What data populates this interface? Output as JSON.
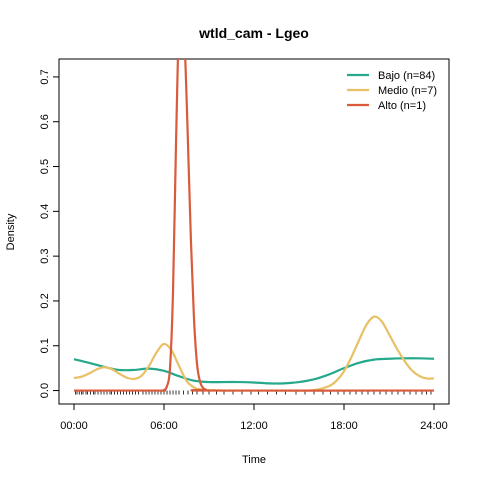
{
  "chart_data": {
    "type": "line",
    "title": "wtld_cam - Lgeo",
    "xlabel": "Time",
    "ylabel": "Density",
    "xlim": [
      -1.0,
      25.0
    ],
    "ylim": [
      -0.03,
      0.74
    ],
    "x_ticks": [
      {
        "value": 0,
        "label": "00:00"
      },
      {
        "value": 6,
        "label": "06:00"
      },
      {
        "value": 12,
        "label": "12:00"
      },
      {
        "value": 18,
        "label": "18:00"
      },
      {
        "value": 24,
        "label": "24:00"
      }
    ],
    "y_ticks": [
      {
        "value": 0.0,
        "label": "0.0"
      },
      {
        "value": 0.1,
        "label": "0.1"
      },
      {
        "value": 0.2,
        "label": "0.2"
      },
      {
        "value": 0.3,
        "label": "0.3"
      },
      {
        "value": 0.4,
        "label": "0.4"
      },
      {
        "value": 0.5,
        "label": "0.5"
      },
      {
        "value": 0.6,
        "label": "0.6"
      },
      {
        "value": 0.7,
        "label": "0.7"
      }
    ],
    "grid": false,
    "legend_position": "top-right",
    "series": [
      {
        "name": "Bajo (n=84)",
        "color": "#26a98b",
        "x": [
          0,
          1,
          2,
          3,
          4,
          5,
          6,
          7,
          8,
          9,
          10,
          11,
          12,
          13,
          14,
          15,
          16,
          17,
          18,
          19,
          20,
          21,
          22,
          23,
          24
        ],
        "y": [
          0.07,
          0.062,
          0.053,
          0.046,
          0.046,
          0.049,
          0.044,
          0.032,
          0.022,
          0.019,
          0.019,
          0.019,
          0.018,
          0.016,
          0.016,
          0.019,
          0.025,
          0.036,
          0.05,
          0.062,
          0.069,
          0.071,
          0.072,
          0.072,
          0.071
        ]
      },
      {
        "name": "Medio (n=7)",
        "color": "#e8c065",
        "x": [
          0,
          0.5,
          1,
          1.5,
          2,
          2.5,
          3,
          3.5,
          4,
          4.5,
          5,
          5.5,
          6,
          6.5,
          7,
          7.5,
          8,
          8.5,
          9,
          10,
          11,
          12,
          13,
          14,
          15,
          16,
          17,
          17.5,
          18,
          18.5,
          19,
          19.5,
          20,
          20.5,
          21,
          21.5,
          22,
          22.5,
          23,
          23.5,
          24
        ],
        "y": [
          0.028,
          0.031,
          0.038,
          0.047,
          0.052,
          0.048,
          0.038,
          0.029,
          0.026,
          0.033,
          0.055,
          0.085,
          0.104,
          0.09,
          0.055,
          0.022,
          0.007,
          0.002,
          0.001,
          0.0,
          0.0,
          0.0,
          0.0,
          0.0,
          0.0,
          0.001,
          0.01,
          0.022,
          0.043,
          0.075,
          0.112,
          0.147,
          0.165,
          0.155,
          0.126,
          0.095,
          0.068,
          0.046,
          0.033,
          0.027,
          0.027
        ]
      },
      {
        "name": "Alto (n=1)",
        "color": "#d95b3b",
        "x": [
          0,
          5.6,
          5.8,
          6.0,
          6.2,
          6.4,
          6.6,
          6.8,
          7.0,
          7.2,
          7.4,
          7.6,
          7.8,
          8.0,
          8.2,
          8.4,
          8.6,
          8.8,
          9.0,
          24
        ],
        "y": [
          0.0,
          0.0,
          0.0,
          0.001,
          0.01,
          0.05,
          0.22,
          0.55,
          0.82,
          0.86,
          0.76,
          0.55,
          0.33,
          0.16,
          0.06,
          0.02,
          0.006,
          0.002,
          0.0,
          0.0
        ]
      }
    ],
    "rug_x": [
      0.1,
      0.2,
      0.35,
      0.5,
      0.6,
      0.8,
      0.9,
      1.1,
      1.3,
      1.4,
      1.6,
      1.8,
      2.0,
      2.2,
      2.4,
      2.5,
      2.7,
      2.9,
      3.1,
      3.3,
      3.5,
      3.7,
      3.9,
      4.1,
      4.3,
      4.6,
      4.8,
      5.0,
      5.2,
      5.4,
      5.6,
      5.8,
      6.0,
      6.2,
      6.4,
      6.6,
      6.8,
      7.0,
      7.3,
      7.6,
      7.9,
      8.2,
      8.6,
      9.0,
      9.5,
      10.0,
      10.6,
      11.2,
      11.8,
      12.3,
      12.9,
      13.5,
      14.1,
      14.8,
      15.4,
      16.0,
      16.6,
      17.1,
      17.6,
      18.0,
      18.4,
      18.8,
      19.2,
      19.6,
      20.0,
      20.4,
      20.8,
      21.2,
      21.6,
      22.0,
      22.4,
      22.8,
      23.2,
      23.5,
      23.8
    ]
  }
}
